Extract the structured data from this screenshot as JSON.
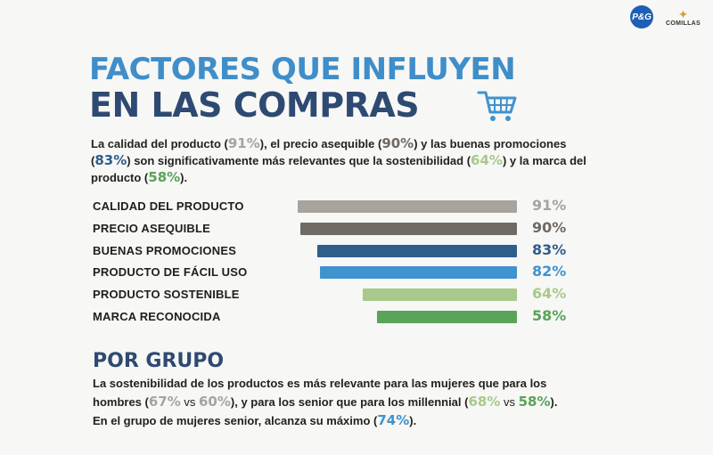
{
  "logos": {
    "pg": "P&G",
    "comillas": "COMILLAS"
  },
  "title": {
    "line1": "FACTORES QUE INFLUYEN",
    "line2": "EN LAS COMPRAS"
  },
  "intro": {
    "p1": "La calidad del producto (",
    "v1": "91%",
    "p2": "), el precio asequible (",
    "v2": "90%",
    "p3": ") y las buenas promociones (",
    "v3": "83%",
    "p4": ") son significativamente más relevantes que la sostenibilidad (",
    "v4": "64%",
    "p5": ") y la marca del producto (",
    "v5": "58%",
    "p6": ")."
  },
  "chart_data": {
    "type": "bar",
    "orientation": "horizontal",
    "categories": [
      "CALIDAD DEL PRODUCTO",
      "PRECIO ASEQUIBLE",
      "BUENAS PROMOCIONES",
      "PRODUCTO DE FÁCIL USO",
      "PRODUCTO SOSTENIBLE",
      "MARCA RECONOCIDA"
    ],
    "values": [
      91,
      90,
      83,
      82,
      64,
      58
    ],
    "value_labels": [
      "91%",
      "90%",
      "83%",
      "82%",
      "64%",
      "58%"
    ],
    "colors": [
      "#a8a39d",
      "#6f6a63",
      "#2f5d8c",
      "#3f93cf",
      "#a8c98a",
      "#5aa35a"
    ],
    "xlim": [
      0,
      100
    ]
  },
  "group": {
    "heading": "POR GRUPO",
    "p1": "La sostenibilidad de los productos es más relevante para las mujeres que para los hombres (",
    "v1": "67%",
    "vs1": " vs ",
    "v2": "60%",
    "p2": "), y para los senior que para los millennial (",
    "v3": "68%",
    "vs2": " vs ",
    "v4": "58%",
    "p3": ").",
    "p4": "En el grupo de mujeres senior, alcanza su máximo (",
    "v5": "74%",
    "p5": ")."
  },
  "colors": {
    "gray": "#a8a39d",
    "dark_gray": "#6f6a63",
    "blue": "#2f5d8c",
    "light_blue": "#3f93cf",
    "light_green": "#a8c98a",
    "green": "#5aa35a"
  }
}
